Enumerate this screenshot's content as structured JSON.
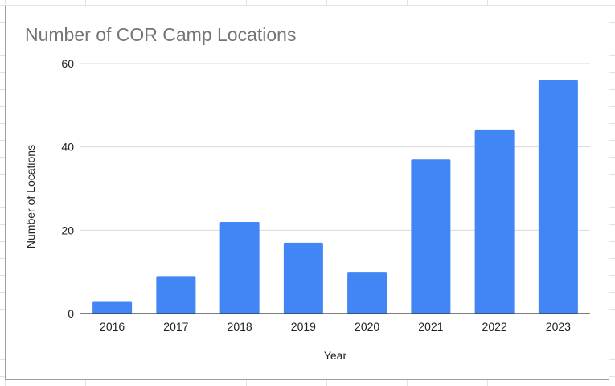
{
  "chart_data": {
    "type": "bar",
    "title": "Number of COR Camp Locations",
    "xlabel": "Year",
    "ylabel": "Number of Locations",
    "categories": [
      "2016",
      "2017",
      "2018",
      "2019",
      "2020",
      "2021",
      "2022",
      "2023"
    ],
    "values": [
      3,
      9,
      22,
      17,
      10,
      37,
      44,
      56
    ],
    "ylim": [
      0,
      60
    ],
    "yticks": [
      0,
      20,
      40,
      60
    ],
    "grid": true,
    "legend": "none",
    "colors": {
      "bar": "#4285f4",
      "gridline": "#d9d9d9",
      "axis": "#333333",
      "title": "#757575",
      "label": "#222222"
    }
  }
}
